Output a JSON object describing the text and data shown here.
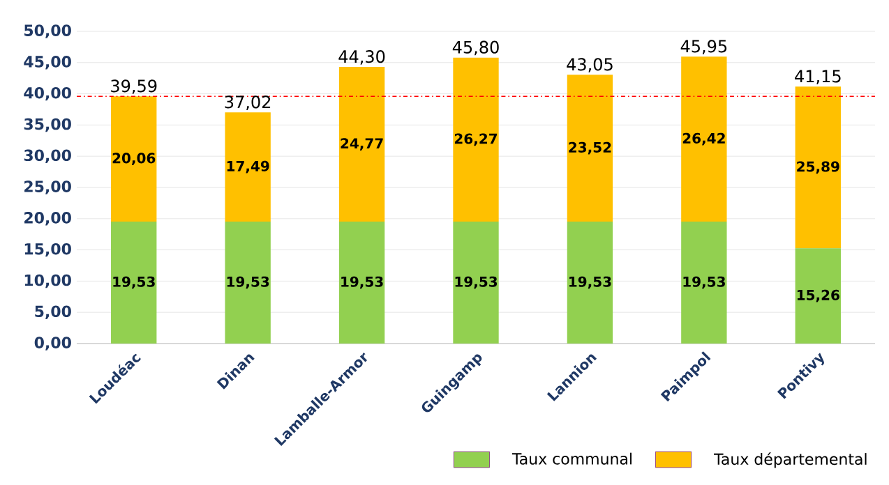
{
  "chart_data": {
    "type": "bar",
    "stacked": true,
    "categories": [
      "Loudéac",
      "Dinan",
      "Lamballe-Armor",
      "Guingamp",
      "Lannion",
      "Paimpol",
      "Pontivy"
    ],
    "series": [
      {
        "name": "Taux communal",
        "color": "#92d050",
        "values": [
          19.53,
          19.53,
          19.53,
          19.53,
          19.53,
          19.53,
          15.26
        ],
        "value_labels": [
          "19,53",
          "19,53",
          "19,53",
          "19,53",
          "19,53",
          "19,53",
          "15,26"
        ]
      },
      {
        "name": "Taux départemental",
        "color": "#ffc000",
        "values": [
          20.06,
          17.49,
          24.77,
          26.27,
          23.52,
          26.42,
          25.89
        ],
        "value_labels": [
          "20,06",
          "17,49",
          "24,77",
          "26,27",
          "23,52",
          "26,42",
          "25,89"
        ]
      }
    ],
    "totals": [
      "39,59",
      "37,02",
      "44,30",
      "45,80",
      "43,05",
      "45,95",
      "41,15"
    ],
    "ylim": [
      0,
      50
    ],
    "yticks": [
      {
        "value": 0,
        "label": "0,00"
      },
      {
        "value": 5,
        "label": "5,00"
      },
      {
        "value": 10,
        "label": "10,00"
      },
      {
        "value": 15,
        "label": "15,00"
      },
      {
        "value": 20,
        "label": "20,00"
      },
      {
        "value": 25,
        "label": "25,00"
      },
      {
        "value": 30,
        "label": "30,00"
      },
      {
        "value": 35,
        "label": "35,00"
      },
      {
        "value": 40,
        "label": "40,00"
      },
      {
        "value": 45,
        "label": "45,00"
      },
      {
        "value": 50,
        "label": "50,00"
      }
    ],
    "ref_lines": [
      {
        "axis": "y",
        "value": 39.59,
        "color": "#ff0000",
        "line_style": "dashdot"
      }
    ],
    "grid": "y",
    "legend": "bottom right"
  }
}
